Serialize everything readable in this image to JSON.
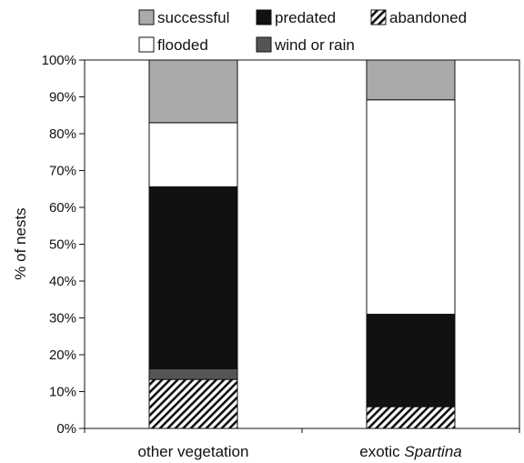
{
  "chart_data": {
    "type": "bar",
    "stacked": true,
    "ylabel": "% of nests",
    "ylim": [
      0,
      100
    ],
    "yticks": [
      "0%",
      "10%",
      "20%",
      "30%",
      "40%",
      "50%",
      "60%",
      "70%",
      "80%",
      "90%",
      "100%"
    ],
    "yticks_values": [
      0,
      10,
      20,
      30,
      40,
      50,
      60,
      70,
      80,
      90,
      100
    ],
    "grid": false,
    "legend_position": "top",
    "categories": [
      {
        "prefix": "other vegetation",
        "emph": ""
      },
      {
        "prefix": "exotic ",
        "emph": "Spartina"
      }
    ],
    "series": [
      {
        "name": "abandoned",
        "values": [
          13.3,
          5.9
        ],
        "fill": "hatch"
      },
      {
        "name": "wind or rain",
        "values": [
          2.9,
          0
        ],
        "fill": "#555555"
      },
      {
        "name": "predated",
        "values": [
          49.4,
          25.1
        ],
        "fill": "#111111"
      },
      {
        "name": "flooded",
        "values": [
          17.4,
          58.2
        ],
        "fill": "#ffffff"
      },
      {
        "name": "successful",
        "values": [
          17.0,
          10.8
        ],
        "fill": "#aaaaaa"
      }
    ],
    "legend_order": [
      [
        "successful",
        "predated",
        "abandoned"
      ],
      [
        "flooded",
        "wind or rain"
      ]
    ]
  }
}
